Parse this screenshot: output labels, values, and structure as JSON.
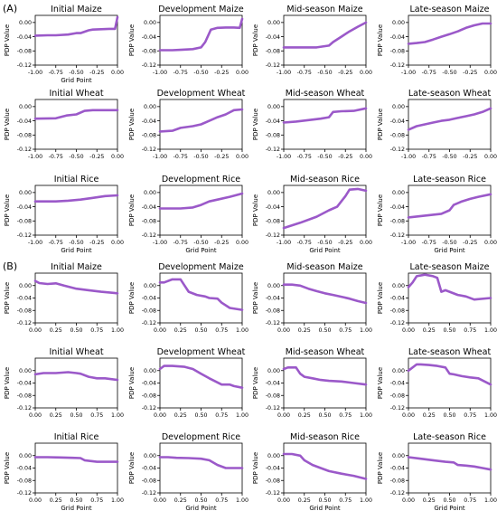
{
  "figure": {
    "panel_a_label": "(A)",
    "panel_b_label": "(B)",
    "line_color": "#9b59c9",
    "axes_color": "#000000"
  },
  "chart_data": [
    {
      "type": "line",
      "panel": "A",
      "title": "Initial Maize",
      "xlabel": "Grid Point",
      "ylabel": "PDP Value",
      "xlim": [
        -1,
        0
      ],
      "ylim": [
        -0.12,
        0.02
      ],
      "xticks": [
        "-1.00",
        "-0.75",
        "-0.50",
        "-0.25",
        "0.00"
      ],
      "yticks": [
        "0.00",
        "-0.04",
        "-0.08",
        "-0.12"
      ],
      "x": [
        -1.0,
        -0.85,
        -0.75,
        -0.6,
        -0.5,
        -0.45,
        -0.35,
        -0.3,
        -0.2,
        -0.1,
        -0.03,
        0.0
      ],
      "y": [
        -0.037,
        -0.036,
        -0.036,
        -0.034,
        -0.03,
        -0.03,
        -0.022,
        -0.02,
        -0.019,
        -0.018,
        -0.018,
        0.015
      ]
    },
    {
      "type": "line",
      "panel": "A",
      "title": "Development Maize",
      "xlabel": "",
      "ylabel": "PDP Value",
      "xlim": [
        -1,
        0
      ],
      "ylim": [
        -0.12,
        0.02
      ],
      "xticks": [
        "-1.00",
        "-0.75",
        "-0.50",
        "-0.25",
        "0.00"
      ],
      "yticks": [
        "0.00",
        "-0.04",
        "-0.08",
        "-0.12"
      ],
      "x": [
        -1.0,
        -0.85,
        -0.75,
        -0.6,
        -0.5,
        -0.45,
        -0.38,
        -0.3,
        -0.2,
        -0.1,
        -0.03,
        0.0
      ],
      "y": [
        -0.078,
        -0.078,
        -0.077,
        -0.075,
        -0.07,
        -0.055,
        -0.02,
        -0.015,
        -0.014,
        -0.014,
        -0.015,
        0.01
      ]
    },
    {
      "type": "line",
      "panel": "A",
      "title": "Mid-season Maize",
      "xlabel": "",
      "ylabel": "PDP Value",
      "xlim": [
        -1,
        0
      ],
      "ylim": [
        -0.12,
        0.02
      ],
      "xticks": [
        "-1.00",
        "-0.75",
        "-0.50",
        "-0.25",
        "0.00"
      ],
      "yticks": [
        "0.00",
        "-0.04",
        "-0.08",
        "-0.12"
      ],
      "x": [
        -1.0,
        -0.8,
        -0.6,
        -0.45,
        -0.4,
        -0.3,
        -0.2,
        -0.1,
        0.0
      ],
      "y": [
        -0.07,
        -0.07,
        -0.07,
        -0.065,
        -0.055,
        -0.04,
        -0.025,
        -0.012,
        0.0
      ]
    },
    {
      "type": "line",
      "panel": "A",
      "title": "Late-season Maize",
      "xlabel": "",
      "ylabel": "PDP Value",
      "xlim": [
        -1,
        0
      ],
      "ylim": [
        -0.12,
        0.02
      ],
      "xticks": [
        "-1.00",
        "-0.75",
        "-0.50",
        "-0.25",
        "0.00"
      ],
      "yticks": [
        "0.00",
        "-0.04",
        "-0.08",
        "-0.12"
      ],
      "x": [
        -1.0,
        -0.9,
        -0.8,
        -0.7,
        -0.6,
        -0.5,
        -0.4,
        -0.3,
        -0.2,
        -0.1,
        0.0
      ],
      "y": [
        -0.06,
        -0.058,
        -0.055,
        -0.048,
        -0.04,
        -0.033,
        -0.025,
        -0.015,
        -0.008,
        -0.003,
        -0.003
      ]
    },
    {
      "type": "line",
      "panel": "A",
      "title": "Initial Wheat",
      "xlabel": "",
      "ylabel": "PDP Value",
      "xlim": [
        -1,
        0
      ],
      "ylim": [
        -0.12,
        0.02
      ],
      "xticks": [
        "-1.00",
        "-0.75",
        "-0.50",
        "-0.25",
        "0.00"
      ],
      "yticks": [
        "0.00",
        "-0.04",
        "-0.08",
        "-0.12"
      ],
      "x": [
        -1.0,
        -0.75,
        -0.62,
        -0.5,
        -0.4,
        -0.3,
        -0.15,
        0.0
      ],
      "y": [
        -0.034,
        -0.033,
        -0.025,
        -0.022,
        -0.012,
        -0.01,
        -0.01,
        -0.01
      ]
    },
    {
      "type": "line",
      "panel": "A",
      "title": "Development Wheat",
      "xlabel": "",
      "ylabel": "PDP Value",
      "xlim": [
        -1,
        0
      ],
      "ylim": [
        -0.12,
        0.02
      ],
      "xticks": [
        "-1.00",
        "-0.75",
        "-0.50",
        "-0.25",
        "0.00"
      ],
      "yticks": [
        "0.00",
        "-0.04",
        "-0.08",
        "-0.12"
      ],
      "x": [
        -1.0,
        -0.85,
        -0.75,
        -0.6,
        -0.5,
        -0.4,
        -0.3,
        -0.2,
        -0.1,
        0.0
      ],
      "y": [
        -0.07,
        -0.068,
        -0.06,
        -0.055,
        -0.05,
        -0.04,
        -0.03,
        -0.022,
        -0.01,
        -0.008
      ]
    },
    {
      "type": "line",
      "panel": "A",
      "title": "Mid-season Wheat",
      "xlabel": "",
      "ylabel": "PDP Value",
      "xlim": [
        -1,
        0
      ],
      "ylim": [
        -0.12,
        0.02
      ],
      "xticks": [
        "-1.00",
        "-0.75",
        "-0.50",
        "-0.25",
        "0.00"
      ],
      "yticks": [
        "0.00",
        "-0.04",
        "-0.08",
        "-0.12"
      ],
      "x": [
        -1.0,
        -0.85,
        -0.7,
        -0.55,
        -0.45,
        -0.4,
        -0.3,
        -0.15,
        0.0
      ],
      "y": [
        -0.045,
        -0.042,
        -0.038,
        -0.034,
        -0.03,
        -0.015,
        -0.013,
        -0.012,
        -0.005
      ]
    },
    {
      "type": "line",
      "panel": "A",
      "title": "Late-season Wheat",
      "xlabel": "",
      "ylabel": "PDP Value",
      "xlim": [
        -1,
        0
      ],
      "ylim": [
        -0.12,
        0.02
      ],
      "xticks": [
        "-1.00",
        "-0.75",
        "-0.50",
        "-0.25",
        "0.00"
      ],
      "yticks": [
        "0.00",
        "-0.04",
        "-0.08",
        "-0.12"
      ],
      "x": [
        -1.0,
        -0.9,
        -0.8,
        -0.7,
        -0.6,
        -0.5,
        -0.4,
        -0.3,
        -0.2,
        -0.1,
        0.0
      ],
      "y": [
        -0.065,
        -0.055,
        -0.05,
        -0.045,
        -0.04,
        -0.037,
        -0.032,
        -0.027,
        -0.022,
        -0.015,
        -0.005
      ]
    },
    {
      "type": "line",
      "panel": "A",
      "title": "Initial Rice",
      "xlabel": "Grid Point",
      "ylabel": "PDP Value",
      "xlim": [
        -1,
        0
      ],
      "ylim": [
        -0.12,
        0.02
      ],
      "xticks": [
        "-1.00",
        "-0.75",
        "-0.50",
        "-0.25",
        "0.00"
      ],
      "yticks": [
        "0.00",
        "-0.04",
        "-0.08",
        "-0.12"
      ],
      "x": [
        -1.0,
        -0.75,
        -0.6,
        -0.45,
        -0.3,
        -0.15,
        0.0
      ],
      "y": [
        -0.025,
        -0.025,
        -0.023,
        -0.02,
        -0.015,
        -0.01,
        -0.008
      ]
    },
    {
      "type": "line",
      "panel": "A",
      "title": "Development Rice",
      "xlabel": "Grid Point",
      "ylabel": "PDP Value",
      "xlim": [
        -1,
        0
      ],
      "ylim": [
        -0.12,
        0.02
      ],
      "xticks": [
        "-1.00",
        "-0.75",
        "-0.50",
        "-0.25",
        "0.00"
      ],
      "yticks": [
        "0.00",
        "-0.04",
        "-0.08",
        "-0.12"
      ],
      "x": [
        -1.0,
        -0.75,
        -0.6,
        -0.5,
        -0.4,
        -0.3,
        -0.15,
        0.0
      ],
      "y": [
        -0.045,
        -0.045,
        -0.042,
        -0.035,
        -0.025,
        -0.02,
        -0.012,
        -0.003
      ]
    },
    {
      "type": "line",
      "panel": "A",
      "title": "Mid-season Rice",
      "xlabel": "Grid Point",
      "ylabel": "PDP Value",
      "xlim": [
        -1,
        0
      ],
      "ylim": [
        -0.12,
        0.02
      ],
      "xticks": [
        "-1.00",
        "-0.75",
        "-0.50",
        "-0.25",
        "0.00"
      ],
      "yticks": [
        "0.00",
        "-0.04",
        "-0.08",
        "-0.12"
      ],
      "x": [
        -1.0,
        -0.8,
        -0.6,
        -0.45,
        -0.35,
        -0.25,
        -0.2,
        -0.1,
        0.0
      ],
      "y": [
        -0.1,
        -0.085,
        -0.068,
        -0.05,
        -0.04,
        -0.01,
        0.008,
        0.01,
        0.005
      ]
    },
    {
      "type": "line",
      "panel": "A",
      "title": "Late-season Rice",
      "xlabel": "Grid Point",
      "ylabel": "PDP Value",
      "xlim": [
        -1,
        0
      ],
      "ylim": [
        -0.12,
        0.02
      ],
      "xticks": [
        "-1.00",
        "-0.75",
        "-0.50",
        "-0.25",
        "0.00"
      ],
      "yticks": [
        "0.00",
        "-0.04",
        "-0.08",
        "-0.12"
      ],
      "x": [
        -1.0,
        -0.8,
        -0.6,
        -0.5,
        -0.45,
        -0.35,
        -0.25,
        -0.15,
        0.0
      ],
      "y": [
        -0.07,
        -0.065,
        -0.06,
        -0.05,
        -0.035,
        -0.025,
        -0.018,
        -0.012,
        -0.005
      ]
    },
    {
      "type": "line",
      "panel": "B",
      "title": "Initial Maize",
      "xlabel": "",
      "ylabel": "PDP Value",
      "xlim": [
        0,
        1
      ],
      "ylim": [
        -0.12,
        0.04
      ],
      "xticks": [
        "0.00",
        "0.25",
        "0.50",
        "0.75",
        "1.00"
      ],
      "yticks": [
        "0.00",
        "-0.04",
        "-0.08",
        "-0.12"
      ],
      "x": [
        0.0,
        0.05,
        0.15,
        0.25,
        0.35,
        0.5,
        0.65,
        0.8,
        1.0
      ],
      "y": [
        0.015,
        0.008,
        0.005,
        0.007,
        0.0,
        -0.01,
        -0.015,
        -0.02,
        -0.025
      ]
    },
    {
      "type": "line",
      "panel": "B",
      "title": "Development Maize",
      "xlabel": "",
      "ylabel": "PDP Value",
      "xlim": [
        0,
        1
      ],
      "ylim": [
        -0.12,
        0.04
      ],
      "xticks": [
        "0.00",
        "0.25",
        "0.50",
        "0.75",
        "1.00"
      ],
      "yticks": [
        "0.00",
        "-0.04",
        "-0.08",
        "-0.12"
      ],
      "x": [
        0.0,
        0.05,
        0.15,
        0.25,
        0.3,
        0.35,
        0.45,
        0.55,
        0.6,
        0.7,
        0.75,
        0.85,
        1.0
      ],
      "y": [
        0.01,
        0.01,
        0.02,
        0.02,
        0.0,
        -0.02,
        -0.03,
        -0.035,
        -0.04,
        -0.042,
        -0.055,
        -0.072,
        -0.078
      ]
    },
    {
      "type": "line",
      "panel": "B",
      "title": "Mid-season Maize",
      "xlabel": "",
      "ylabel": "PDP Value",
      "xlim": [
        0,
        1
      ],
      "ylim": [
        -0.12,
        0.04
      ],
      "xticks": [
        "0.00",
        "0.25",
        "0.50",
        "0.75",
        "1.00"
      ],
      "yticks": [
        "0.00",
        "-0.04",
        "-0.08",
        "-0.12"
      ],
      "x": [
        0.0,
        0.1,
        0.2,
        0.3,
        0.4,
        0.5,
        0.6,
        0.7,
        0.8,
        0.9,
        1.0
      ],
      "y": [
        0.003,
        0.003,
        0.0,
        -0.01,
        -0.018,
        -0.025,
        -0.03,
        -0.036,
        -0.042,
        -0.05,
        -0.056
      ]
    },
    {
      "type": "line",
      "panel": "B",
      "title": "Late-season Maize",
      "xlabel": "",
      "ylabel": "PDP Value",
      "xlim": [
        0,
        1
      ],
      "ylim": [
        -0.12,
        0.04
      ],
      "xticks": [
        "0.00",
        "0.25",
        "0.50",
        "0.75",
        "1.00"
      ],
      "yticks": [
        "0.00",
        "-0.04",
        "-0.08",
        "-0.12"
      ],
      "x": [
        0.0,
        0.05,
        0.1,
        0.2,
        0.3,
        0.35,
        0.4,
        0.45,
        0.5,
        0.6,
        0.7,
        0.8,
        1.0
      ],
      "y": [
        -0.005,
        0.01,
        0.03,
        0.035,
        0.03,
        0.025,
        -0.02,
        -0.015,
        -0.02,
        -0.03,
        -0.035,
        -0.045,
        -0.04
      ]
    },
    {
      "type": "line",
      "panel": "B",
      "title": "Initial Wheat",
      "xlabel": "",
      "ylabel": "PDP Value",
      "xlim": [
        0,
        1
      ],
      "ylim": [
        -0.12,
        0.04
      ],
      "xticks": [
        "0.00",
        "0.25",
        "0.50",
        "0.75",
        "1.00"
      ],
      "yticks": [
        "0.00",
        "-0.04",
        "-0.08",
        "-0.12"
      ],
      "x": [
        0.0,
        0.1,
        0.25,
        0.4,
        0.5,
        0.55,
        0.65,
        0.75,
        0.85,
        1.0
      ],
      "y": [
        -0.012,
        -0.008,
        -0.008,
        -0.005,
        -0.008,
        -0.01,
        -0.02,
        -0.025,
        -0.025,
        -0.03
      ]
    },
    {
      "type": "line",
      "panel": "B",
      "title": "Development Wheat",
      "xlabel": "",
      "ylabel": "PDP Value",
      "xlim": [
        0,
        1
      ],
      "ylim": [
        -0.12,
        0.04
      ],
      "xticks": [
        "0.00",
        "0.25",
        "0.50",
        "0.75",
        "1.00"
      ],
      "yticks": [
        "0.00",
        "-0.04",
        "-0.08",
        "-0.12"
      ],
      "x": [
        0.0,
        0.05,
        0.15,
        0.3,
        0.4,
        0.5,
        0.6,
        0.75,
        0.85,
        0.9,
        1.0
      ],
      "y": [
        0.005,
        0.015,
        0.015,
        0.012,
        0.005,
        -0.01,
        -0.025,
        -0.045,
        -0.045,
        -0.05,
        -0.055
      ]
    },
    {
      "type": "line",
      "panel": "B",
      "title": "Mid-season Wheat",
      "xlabel": "",
      "ylabel": "PDP Value",
      "xlim": [
        0,
        1
      ],
      "ylim": [
        -0.12,
        0.04
      ],
      "xticks": [
        "0.00",
        "0.25",
        "0.50",
        "0.75",
        "1.00"
      ],
      "yticks": [
        "0.00",
        "-0.04",
        "-0.08",
        "-0.12"
      ],
      "x": [
        0.0,
        0.05,
        0.15,
        0.2,
        0.25,
        0.35,
        0.45,
        0.55,
        0.7,
        0.85,
        1.0
      ],
      "y": [
        0.005,
        0.01,
        0.01,
        -0.01,
        -0.02,
        -0.025,
        -0.03,
        -0.033,
        -0.035,
        -0.04,
        -0.045
      ]
    },
    {
      "type": "line",
      "panel": "B",
      "title": "Late-season Wheat",
      "xlabel": "",
      "ylabel": "PDP Value",
      "xlim": [
        0,
        1
      ],
      "ylim": [
        -0.12,
        0.04
      ],
      "xticks": [
        "0.00",
        "0.25",
        "0.50",
        "0.75",
        "1.00"
      ],
      "yticks": [
        "0.00",
        "-0.04",
        "-0.08",
        "-0.12"
      ],
      "x": [
        0.0,
        0.1,
        0.15,
        0.25,
        0.35,
        0.45,
        0.5,
        0.55,
        0.65,
        0.75,
        0.85,
        1.0
      ],
      "y": [
        0.0,
        0.02,
        0.02,
        0.018,
        0.015,
        0.01,
        -0.01,
        -0.012,
        -0.018,
        -0.022,
        -0.025,
        -0.045
      ]
    },
    {
      "type": "line",
      "panel": "B",
      "title": "Initial Rice",
      "xlabel": "Grid Point",
      "ylabel": "PDP Value",
      "xlim": [
        0,
        1
      ],
      "ylim": [
        -0.12,
        0.04
      ],
      "xticks": [
        "0.00",
        "0.25",
        "0.50",
        "0.75",
        "1.00"
      ],
      "yticks": [
        "0.00",
        "-0.04",
        "-0.08",
        "-0.12"
      ],
      "x": [
        0.0,
        0.15,
        0.3,
        0.45,
        0.55,
        0.6,
        0.75,
        0.85,
        1.0
      ],
      "y": [
        -0.005,
        -0.005,
        -0.006,
        -0.007,
        -0.008,
        -0.015,
        -0.02,
        -0.02,
        -0.02
      ]
    },
    {
      "type": "line",
      "panel": "B",
      "title": "Development Rice",
      "xlabel": "Grid Point",
      "ylabel": "PDP Value",
      "xlim": [
        0,
        1
      ],
      "ylim": [
        -0.12,
        0.04
      ],
      "xticks": [
        "0.00",
        "0.25",
        "0.50",
        "0.75",
        "1.00"
      ],
      "yticks": [
        "0.00",
        "-0.04",
        "-0.08",
        "-0.12"
      ],
      "x": [
        0.0,
        0.1,
        0.2,
        0.35,
        0.5,
        0.6,
        0.7,
        0.8,
        1.0
      ],
      "y": [
        -0.005,
        -0.005,
        -0.007,
        -0.008,
        -0.01,
        -0.015,
        -0.03,
        -0.04,
        -0.04
      ]
    },
    {
      "type": "line",
      "panel": "B",
      "title": "Mid-season Rice",
      "xlabel": "Grid Point",
      "ylabel": "PDP Value",
      "xlim": [
        0,
        1
      ],
      "ylim": [
        -0.12,
        0.04
      ],
      "xticks": [
        "0.00",
        "0.25",
        "0.50",
        "0.75",
        "1.00"
      ],
      "yticks": [
        "0.00",
        "-0.04",
        "-0.08",
        "-0.12"
      ],
      "x": [
        0.0,
        0.1,
        0.2,
        0.25,
        0.35,
        0.45,
        0.55,
        0.7,
        0.85,
        1.0
      ],
      "y": [
        0.005,
        0.005,
        0.0,
        -0.015,
        -0.03,
        -0.04,
        -0.05,
        -0.058,
        -0.065,
        -0.075
      ]
    },
    {
      "type": "line",
      "panel": "B",
      "title": "Late-season Rice",
      "xlabel": "Grid Point",
      "ylabel": "PDP Value",
      "xlim": [
        0,
        1
      ],
      "ylim": [
        -0.12,
        0.04
      ],
      "xticks": [
        "0.00",
        "0.25",
        "0.50",
        "0.75",
        "1.00"
      ],
      "yticks": [
        "0.00",
        "-0.04",
        "-0.08",
        "-0.12"
      ],
      "x": [
        0.0,
        0.15,
        0.3,
        0.45,
        0.55,
        0.6,
        0.7,
        0.8,
        0.9,
        1.0
      ],
      "y": [
        -0.005,
        -0.01,
        -0.015,
        -0.02,
        -0.022,
        -0.03,
        -0.032,
        -0.035,
        -0.04,
        -0.045
      ]
    }
  ]
}
